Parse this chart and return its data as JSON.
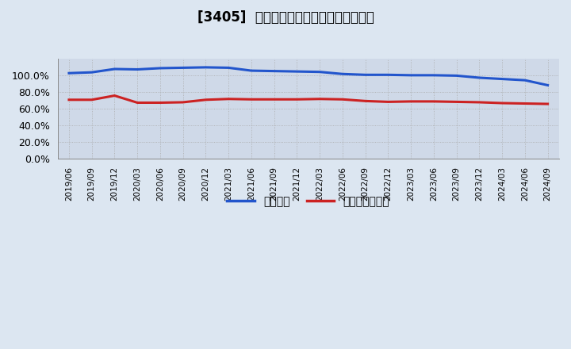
{
  "title": "[3405]  固定比率、固定長期適合率の推移",
  "title_fontsize": 12,
  "x_labels": [
    "2019/06",
    "2019/09",
    "2019/12",
    "2020/03",
    "2020/06",
    "2020/09",
    "2020/12",
    "2021/03",
    "2021/06",
    "2021/09",
    "2021/12",
    "2022/03",
    "2022/06",
    "2022/09",
    "2022/12",
    "2023/03",
    "2023/06",
    "2023/09",
    "2023/12",
    "2024/03",
    "2024/06",
    "2024/09"
  ],
  "fixed_ratio": [
    1.03,
    1.04,
    1.08,
    1.075,
    1.09,
    1.095,
    1.1,
    1.095,
    1.06,
    1.055,
    1.05,
    1.045,
    1.02,
    1.01,
    1.01,
    1.005,
    1.005,
    1.0,
    0.975,
    0.96,
    0.945,
    0.885
  ],
  "fixed_lt_ratio": [
    0.71,
    0.71,
    0.76,
    0.675,
    0.675,
    0.68,
    0.71,
    0.72,
    0.715,
    0.715,
    0.715,
    0.72,
    0.715,
    0.695,
    0.685,
    0.69,
    0.69,
    0.685,
    0.68,
    0.67,
    0.665,
    0.66
  ],
  "fixed_ratio_color": "#2255cc",
  "fixed_lt_ratio_color": "#cc2222",
  "background_color": "#dce6f1",
  "plot_area_color": "#cfd9e8",
  "ylim": [
    0.0,
    1.2
  ],
  "yticks": [
    0.0,
    0.2,
    0.4,
    0.6,
    0.8,
    1.0
  ],
  "legend_labels": [
    "固定比率",
    "固定長期適合率"
  ],
  "grid_color": "#aaaaaa",
  "line_width": 2.2
}
